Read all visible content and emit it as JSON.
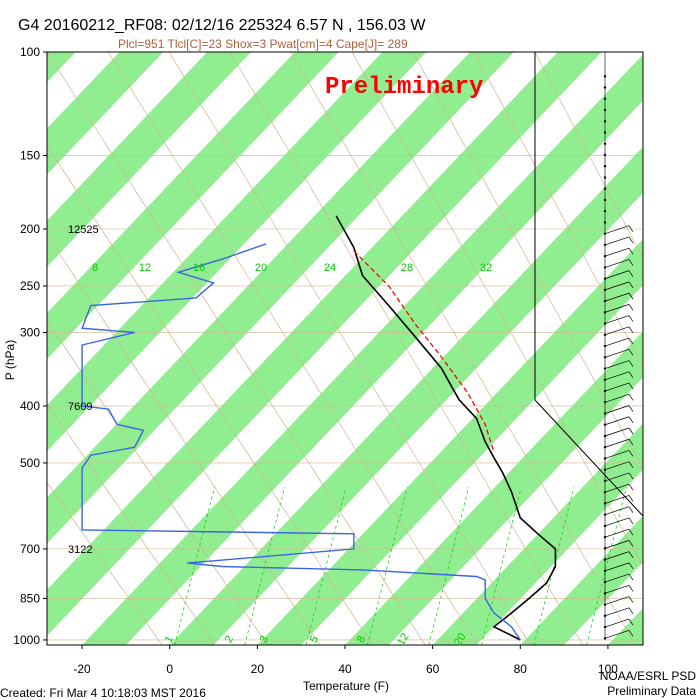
{
  "header": {
    "title": "G4 20160212_RF08: 02/12/16 225324   6.57 N , 156.03 W",
    "subtitle": "Plcl=951 Tlcl[C]=23 Shox=3 Pwat[cm]=4 Cape[J]= 289",
    "watermark": "Preliminary"
  },
  "footer": {
    "created": "Created: Fri Mar  4 10:18:03 MST 2016",
    "org": "NOAA/ESRL PSD",
    "status": "Preliminary Data"
  },
  "colors": {
    "stripe": "#90ee90",
    "temperature": "#000000",
    "dewpoint": "#3c64e6",
    "parcel": "#ff0000",
    "isotherm": "#d2b48c",
    "mixing_ratio": "#00c800"
  },
  "chart_data": {
    "type": "line",
    "xlabel": "Temperature (F)",
    "ylabel": "P (hPa)",
    "xlim": [
      -28,
      108
    ],
    "ylim": [
      1020,
      100
    ],
    "y_scale": "log",
    "x_ticks": [
      -20,
      0,
      20,
      40,
      60,
      80,
      100
    ],
    "y_ticks": [
      100,
      150,
      200,
      250,
      300,
      400,
      500,
      700,
      850,
      1000
    ],
    "height_labels": [
      {
        "p": 200,
        "text": "12525"
      },
      {
        "p": 400,
        "text": "7609"
      },
      {
        "p": 700,
        "text": "3122"
      }
    ],
    "mixing_ratio_labels": [
      "8",
      "12",
      "16",
      "20",
      "24",
      "28",
      "32"
    ],
    "mixing_ratio_bottom_labels": [
      "1",
      "2",
      "3",
      "5",
      "8",
      "12",
      "20"
    ],
    "series": [
      {
        "role": "temperature",
        "points": [
          [
            38,
            190
          ],
          [
            42,
            215
          ],
          [
            44,
            240
          ],
          [
            50,
            270
          ],
          [
            56,
            305
          ],
          [
            62,
            345
          ],
          [
            66,
            390
          ],
          [
            70,
            420
          ],
          [
            72,
            460
          ],
          [
            74,
            490
          ],
          [
            76,
            520
          ],
          [
            78,
            560
          ],
          [
            80,
            620
          ],
          [
            84,
            660
          ],
          [
            88,
            700
          ],
          [
            88,
            750
          ],
          [
            86,
            800
          ],
          [
            82,
            850
          ],
          [
            78,
            900
          ],
          [
            74,
            950
          ],
          [
            80,
            1000
          ]
        ]
      },
      {
        "role": "dewpoint",
        "points": [
          [
            22,
            212
          ],
          [
            12,
            225
          ],
          [
            2,
            237
          ],
          [
            10,
            247
          ],
          [
            6,
            262
          ],
          [
            -18,
            270
          ],
          [
            -20,
            295
          ],
          [
            -8,
            300
          ],
          [
            -20,
            315
          ],
          [
            -20,
            400
          ],
          [
            -14,
            405
          ],
          [
            -12,
            430
          ],
          [
            -6,
            440
          ],
          [
            -8,
            470
          ],
          [
            -18,
            485
          ],
          [
            -20,
            510
          ],
          [
            -20,
            650
          ],
          [
            42,
            660
          ],
          [
            42,
            700
          ],
          [
            4,
            740
          ],
          [
            12,
            750
          ],
          [
            44,
            760
          ],
          [
            70,
            780
          ],
          [
            72,
            790
          ],
          [
            72,
            850
          ],
          [
            74,
            900
          ],
          [
            78,
            950
          ],
          [
            80,
            1000
          ]
        ]
      },
      {
        "role": "parcel",
        "points": [
          [
            42,
            218
          ],
          [
            50,
            250
          ],
          [
            56,
            290
          ],
          [
            62,
            330
          ],
          [
            68,
            380
          ],
          [
            72,
            430
          ],
          [
            74,
            480
          ]
        ]
      }
    ],
    "wind_barbs": "present at right edge"
  }
}
